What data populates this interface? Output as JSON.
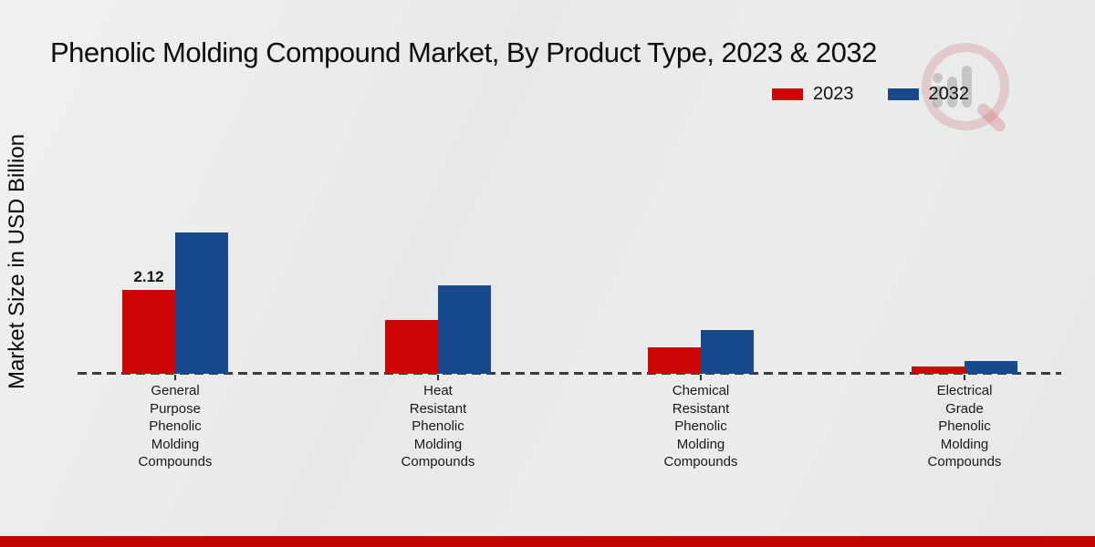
{
  "chart_data": {
    "type": "bar",
    "title": "Phenolic Molding Compound Market, By Product Type, 2023 & 2032",
    "ylabel": "Market Size in USD Billion",
    "xlabel": "",
    "categories": [
      "General Purpose Phenolic Molding Compounds",
      "Heat Resistant Phenolic Molding Compounds",
      "Chemical Resistant Phenolic Molding Compounds",
      "Electrical Grade Phenolic Molding Compounds"
    ],
    "series": [
      {
        "name": "2023",
        "color": "#cc0605",
        "values": [
          2.12,
          1.35,
          0.67,
          0.18
        ]
      },
      {
        "name": "2032",
        "color": "#17498c",
        "values": [
          3.57,
          2.24,
          1.11,
          0.32
        ]
      }
    ],
    "annotations": [
      {
        "series": "2023",
        "category_index": 0,
        "text": "2.12"
      }
    ],
    "ylim": [
      0,
      4
    ],
    "grid": false,
    "legend_position": "top-right",
    "baseline_style": "dashed"
  },
  "colors": {
    "bar_2023": "#cc0605",
    "bar_2032": "#17498c",
    "baseline": "#3d3d3d",
    "bottom_strip": "#c10505",
    "background": "#e9eaea"
  }
}
